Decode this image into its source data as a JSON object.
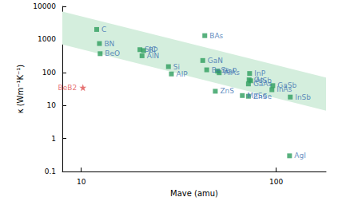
{
  "chart_data": {
    "type": "scatter",
    "log": true,
    "grid": false,
    "x_label": "Mave (amu)",
    "y_label": "κ (Wm⁻¹K⁻¹)",
    "xlim": [
      8,
      180
    ],
    "xticks": [
      10,
      100
    ],
    "ylim": [
      0.1,
      10000
    ],
    "yticks": [
      0.1,
      1,
      10,
      100,
      1000,
      10000
    ],
    "band": {
      "color": "#d4eedd",
      "x": [
        8,
        180
      ],
      "upper": [
        7000,
        70
      ],
      "lower": [
        700,
        7
      ]
    },
    "series": [
      {
        "color": "#2e9e5e",
        "marker": "square",
        "labels": [
          "C",
          "BN",
          "BeO",
          "SiC",
          "BP",
          "AlN",
          "BAs",
          "Si",
          "AlP",
          "BeSe",
          "GaN",
          "AlAs",
          "GaP",
          "ZnS",
          "AlSb",
          "InP",
          "GaAs",
          "Ge",
          "MnSe",
          "ZnSe",
          "GaSb",
          "InAs",
          "InSb",
          "AgI"
        ],
        "x": [
          12,
          12.4,
          12.5,
          20,
          20.9,
          20.5,
          43,
          28,
          29,
          44,
          42,
          51,
          50,
          48.7,
          74,
          73,
          72,
          72.6,
          67,
          72,
          96,
          95,
          118,
          117
        ],
        "values": [
          2000,
          750,
          370,
          490,
          460,
          320,
          1300,
          150,
          90,
          120,
          230,
          98,
          110,
          27,
          56,
          93,
          45,
          60,
          20,
          19,
          40,
          30,
          18,
          0.3
        ]
      },
      {
        "color": "#e05050",
        "marker": "star",
        "labels": [
          "BeB2"
        ],
        "x": [
          10.2
        ],
        "values": [
          35
        ]
      }
    ]
  }
}
